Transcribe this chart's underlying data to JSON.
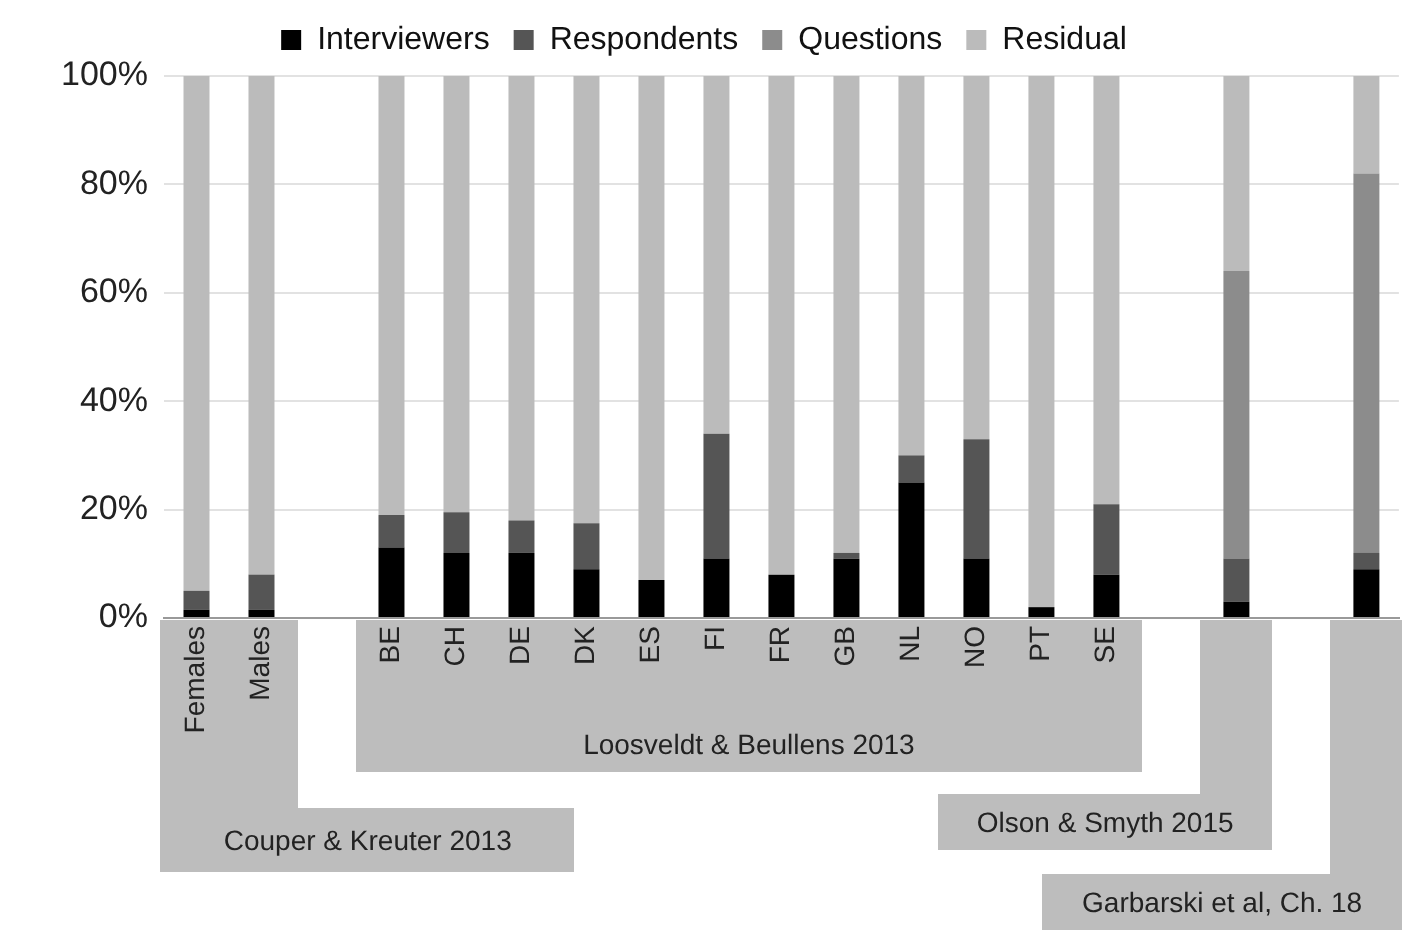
{
  "chart_data": {
    "type": "bar",
    "stacked": true,
    "categories": [
      "Females",
      "Males",
      null,
      "BE",
      "CH",
      "DE",
      "DK",
      "ES",
      "FI",
      "FR",
      "GB",
      "NL",
      "NO",
      "PT",
      "SE",
      null,
      null,
      null,
      null
    ],
    "series": [
      {
        "name": "Interviewers",
        "color": "#000000",
        "values": [
          1.5,
          1.5,
          null,
          13,
          12,
          12,
          9,
          7,
          11,
          8,
          11,
          25,
          11,
          2,
          8,
          null,
          3,
          null,
          9
        ]
      },
      {
        "name": "Respondents",
        "color": "#555555",
        "values": [
          3.5,
          6.5,
          null,
          6,
          7.5,
          6,
          8.5,
          0,
          23,
          0,
          1,
          5,
          22,
          0,
          13,
          null,
          8,
          null,
          3
        ]
      },
      {
        "name": "Questions",
        "color": "#8c8c8c",
        "values": [
          0,
          0,
          null,
          0,
          0,
          0,
          0,
          0,
          0,
          0,
          0,
          0,
          0,
          0,
          0,
          null,
          53,
          null,
          70
        ]
      },
      {
        "name": "Residual",
        "color": "#bbbbbb",
        "values": [
          95,
          92,
          null,
          81,
          80.5,
          82,
          82.5,
          93,
          66,
          92,
          88,
          70,
          67,
          98,
          79,
          null,
          36,
          null,
          18
        ]
      }
    ],
    "ylim": [
      0,
      100
    ],
    "yticks": [
      {
        "value": 0,
        "label": "0%"
      },
      {
        "value": 20,
        "label": "20%"
      },
      {
        "value": 40,
        "label": "40%"
      },
      {
        "value": 60,
        "label": "60%"
      },
      {
        "value": 80,
        "label": "80%"
      },
      {
        "value": 100,
        "label": "100%"
      }
    ],
    "grid": "y",
    "legend": "top",
    "annotations": [
      "Couper & Kreuter 2013",
      "Loosveldt & Beullens 2013",
      "Olson & Smyth 2015",
      "Garbarski et al, Ch. 18"
    ]
  }
}
